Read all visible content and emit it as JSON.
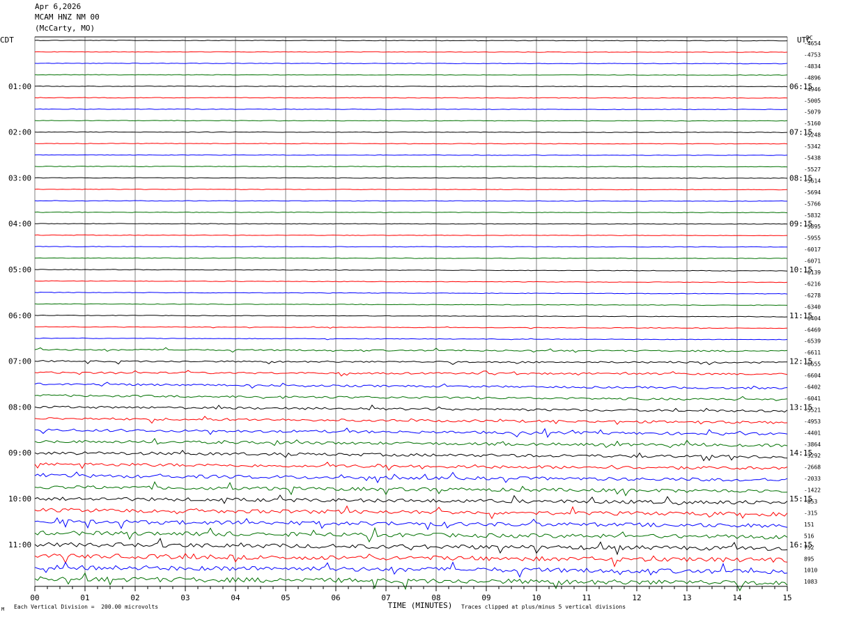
{
  "header": {
    "date": "Apr 6,2026",
    "station": "MCAM HNZ NM 00",
    "location": "(McCarty, MO)"
  },
  "left_tz": "CDT",
  "right_tz": "UTC",
  "dc_label": "DC",
  "footer": {
    "left": "Each Vertical Division =  200.00 microvolts",
    "right": "Traces clipped at plus/minus 5 vertical divisions",
    "logo": "M"
  },
  "colors": {
    "cycle": [
      "#000000",
      "#ff0000",
      "#0000ff",
      "#007000"
    ],
    "grid": "#808080"
  },
  "chart_data": {
    "type": "line",
    "title": "",
    "xlabel": "TIME (MINUTES)",
    "ylabel": "",
    "xlim": [
      0,
      15
    ],
    "x_ticks": [
      "00",
      "01",
      "02",
      "03",
      "04",
      "05",
      "06",
      "07",
      "08",
      "09",
      "10",
      "11",
      "12",
      "13",
      "14",
      "15"
    ],
    "left_hour_labels": [
      "01:00",
      "02:00",
      "03:00",
      "04:00",
      "05:00",
      "06:00",
      "07:00",
      "08:00",
      "09:00",
      "10:00",
      "11:00"
    ],
    "right_hour_labels": [
      "06:15",
      "07:15",
      "08:15",
      "09:15",
      "10:15",
      "11:15",
      "12:15",
      "13:15",
      "14:15",
      "15:15",
      "16:15"
    ],
    "trace_count": 48,
    "dc_offsets": [
      "-4654",
      "-4753",
      "-4834",
      "-4896",
      "-4946",
      "-5005",
      "-5079",
      "-5160",
      "-5248",
      "-5342",
      "-5438",
      "-5527",
      "-5614",
      "-5694",
      "-5766",
      "-5832",
      "-5895",
      "-5955",
      "-6017",
      "-6071",
      "-6139",
      "-6216",
      "-6278",
      "-6340",
      "-6404",
      "-6469",
      "-6539",
      "-6611",
      "-6655",
      "-6604",
      "-6402",
      "-6041",
      "-5521",
      "-4953",
      "-4401",
      "-3864",
      "-3292",
      "-2668",
      "-2033",
      "-1422",
      "-853",
      "-315",
      "151",
      "516",
      "752",
      "895",
      "1010",
      "1083"
    ]
  }
}
